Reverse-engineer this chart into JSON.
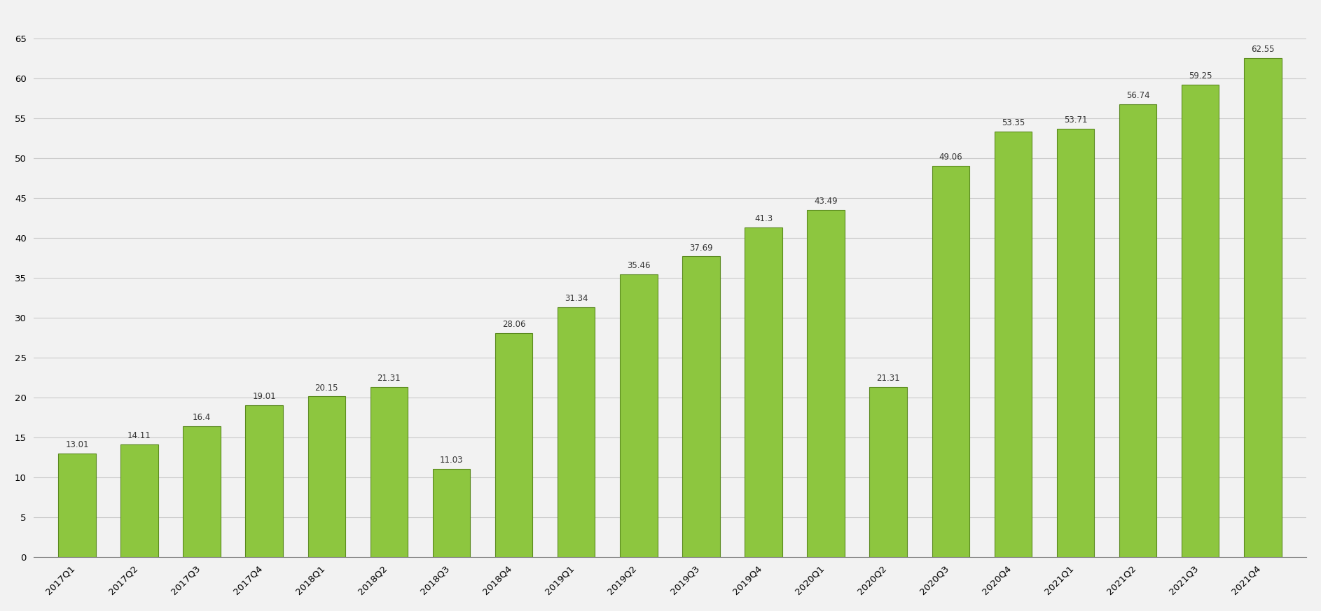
{
  "categories": [
    "2017Q1",
    "2017Q2",
    "2017Q3",
    "2017Q4",
    "2018Q1",
    "2018Q2",
    "2018Q3",
    "2018Q4",
    "2019Q1",
    "2019Q2",
    "2019Q3",
    "2019Q4",
    "2020Q1",
    "2020Q2",
    "2020Q3",
    "2020Q4",
    "2021Q1",
    "2021Q2",
    "2021Q3",
    "2021Q4"
  ],
  "values": [
    13.01,
    14.11,
    16.4,
    19.01,
    20.15,
    21.31,
    11.03,
    28.06,
    31.34,
    35.46,
    37.69,
    41.3,
    43.49,
    21.31,
    49.06,
    53.35,
    53.71,
    56.74,
    59.25,
    62.55
  ],
  "bar_color_top": "#8dc63f",
  "bar_color_bottom": "#5a8a1e",
  "background_color": "#f5f5f5",
  "ylim": [
    0,
    68
  ],
  "yticks": [
    0,
    5,
    10,
    15,
    20,
    25,
    30,
    35,
    40,
    45,
    50,
    55,
    60,
    65
  ],
  "label_fontsize": 9,
  "tick_fontsize": 9.5,
  "bar_width": 0.65
}
